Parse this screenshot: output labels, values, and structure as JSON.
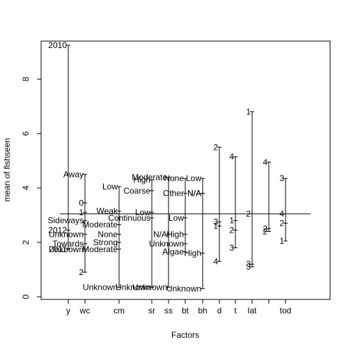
{
  "chart_data": {
    "type": "design_plot",
    "xlabel": "Factors",
    "ylabel": "mean of fishseen",
    "ylim": [
      -0.1,
      9.4
    ],
    "yticks": [
      0,
      2,
      4,
      6,
      8
    ],
    "grand_mean": 3.05,
    "factors": [
      {
        "name": "y",
        "levels": [
          {
            "label": "2010",
            "value": 9.25
          },
          {
            "label": "2012",
            "value": 2.45
          },
          {
            "label": "2011",
            "value": 1.75
          }
        ]
      },
      {
        "name": "wc",
        "levels": [
          {
            "label": "Away",
            "value": 4.5
          },
          {
            "label": "0",
            "value": 3.45
          },
          {
            "label": "1",
            "value": 3.1
          },
          {
            "label": "Sideways",
            "value": 2.8
          },
          {
            "label": "Unknown",
            "value": 2.3
          },
          {
            "label": "Towards",
            "value": 1.95
          },
          {
            "label": "Unknown",
            "value": 1.75
          },
          {
            "label": "2",
            "value": 0.9
          }
        ]
      },
      {
        "name": "cm",
        "levels": [
          {
            "label": "Low",
            "value": 4.05
          },
          {
            "label": "Weak",
            "value": 3.15
          },
          {
            "label": "Moderate",
            "value": 2.65
          },
          {
            "label": "None",
            "value": 2.3
          },
          {
            "label": "Strong",
            "value": 2.0
          },
          {
            "label": "Moderate",
            "value": 1.75
          },
          {
            "label": "Unknown",
            "value": 0.35
          }
        ]
      },
      {
        "name": "sr",
        "levels": [
          {
            "label": "High",
            "value": 4.3
          },
          {
            "label": "Coarse",
            "value": 3.9
          },
          {
            "label": "Low",
            "value": 3.1
          },
          {
            "label": "Continuous",
            "value": 2.9
          },
          {
            "label": "Unknown",
            "value": 0.35
          }
        ]
      },
      {
        "name": "ss",
        "levels": [
          {
            "label": "Moderate",
            "value": 4.4
          },
          {
            "label": "N/A",
            "value": 2.3
          },
          {
            "label": "Unknown",
            "value": 0.35
          }
        ]
      },
      {
        "name": "bt",
        "levels": [
          {
            "label": "None",
            "value": 4.35
          },
          {
            "label": "Other",
            "value": 3.8
          },
          {
            "label": "Low",
            "value": 2.9
          },
          {
            "label": "High",
            "value": 2.3
          },
          {
            "label": "Unknown",
            "value": 1.95
          },
          {
            "label": "Algae",
            "value": 1.65
          }
        ]
      },
      {
        "name": "bh",
        "levels": [
          {
            "label": "Low",
            "value": 4.35
          },
          {
            "label": "N/A",
            "value": 3.8
          },
          {
            "label": "N/A",
            "value": 3.8
          },
          {
            "label": "High",
            "value": 1.6
          },
          {
            "label": "Unknown",
            "value": 0.3
          }
        ]
      },
      {
        "name": "d",
        "levels": [
          {
            "label": "2",
            "value": 5.5
          },
          {
            "label": "3",
            "value": 2.75
          },
          {
            "label": "1",
            "value": 2.6
          },
          {
            "label": "4",
            "value": 1.3
          }
        ]
      },
      {
        "name": "t",
        "levels": [
          {
            "label": "4",
            "value": 5.15
          },
          {
            "label": "1",
            "value": 2.8
          },
          {
            "label": "2",
            "value": 2.45
          },
          {
            "label": "3",
            "value": 1.8
          }
        ]
      },
      {
        "name": "lat",
        "levels": [
          {
            "label": "1",
            "value": 6.8
          },
          {
            "label": "2",
            "value": 3.05
          },
          {
            "label": "3",
            "value": 1.2
          },
          {
            "label": "3",
            "value": 1.1
          }
        ]
      },
      {
        "name": "",
        "levels": [
          {
            "label": "4",
            "value": 4.95
          },
          {
            "label": "2",
            "value": 2.5
          },
          {
            "label": "2",
            "value": 2.4
          }
        ]
      },
      {
        "name": "tod",
        "levels": [
          {
            "label": "3",
            "value": 4.35
          },
          {
            "label": "4",
            "value": 3.05
          },
          {
            "label": "2",
            "value": 2.7
          },
          {
            "label": "1",
            "value": 2.05
          }
        ]
      }
    ]
  }
}
